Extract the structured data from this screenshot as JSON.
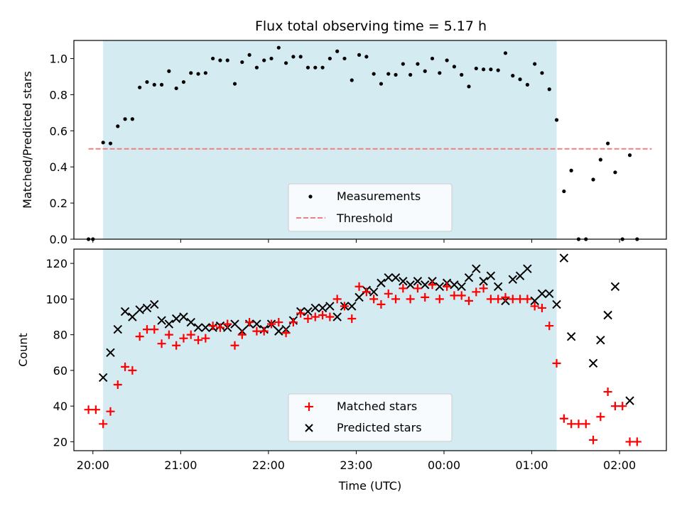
{
  "chart_data": [
    {
      "type": "scatter",
      "title": "Flux total observing time = 5.17 h",
      "ylabel": "Matched/Predicted stars",
      "xlabel": "",
      "xlim": [
        "19:47",
        "02:32"
      ],
      "ylim": [
        0,
        1.1
      ],
      "yticks": [
        "0.0",
        "0.2",
        "0.4",
        "0.6",
        "0.8",
        "1.0"
      ],
      "shaded_interval": [
        "20:07",
        "01:17"
      ],
      "legend": {
        "placement": "bottom-center",
        "entries": [
          "Measurements",
          "Threshold"
        ]
      },
      "threshold": {
        "y": 0.5,
        "x": [
          "19:57",
          "02:22"
        ],
        "color": "#f08080"
      },
      "series": [
        {
          "name": "Measurements",
          "color": "#000000",
          "marker": "dot",
          "points": [
            [
              "19:57",
              0.0
            ],
            [
              "20:00",
              0.0
            ],
            [
              "20:07",
              0.535
            ],
            [
              "20:12",
              0.53
            ],
            [
              "20:17",
              0.625
            ],
            [
              "20:22",
              0.665
            ],
            [
              "20:27",
              0.665
            ],
            [
              "20:32",
              0.84
            ],
            [
              "20:37",
              0.87
            ],
            [
              "20:42",
              0.855
            ],
            [
              "20:47",
              0.855
            ],
            [
              "20:52",
              0.93
            ],
            [
              "20:57",
              0.835
            ],
            [
              "21:02",
              0.87
            ],
            [
              "21:07",
              0.92
            ],
            [
              "21:12",
              0.915
            ],
            [
              "21:17",
              0.92
            ],
            [
              "21:22",
              1.0
            ],
            [
              "21:27",
              0.99
            ],
            [
              "21:32",
              0.99
            ],
            [
              "21:37",
              0.86
            ],
            [
              "21:42",
              0.98
            ],
            [
              "21:47",
              1.02
            ],
            [
              "21:52",
              0.95
            ],
            [
              "21:57",
              0.99
            ],
            [
              "22:02",
              1.0
            ],
            [
              "22:07",
              1.06
            ],
            [
              "22:12",
              0.975
            ],
            [
              "22:17",
              1.01
            ],
            [
              "22:22",
              1.01
            ],
            [
              "22:27",
              0.95
            ],
            [
              "22:32",
              0.95
            ],
            [
              "22:37",
              0.95
            ],
            [
              "22:42",
              1.0
            ],
            [
              "22:47",
              1.04
            ],
            [
              "22:52",
              1.0
            ],
            [
              "22:57",
              0.88
            ],
            [
              "23:02",
              1.02
            ],
            [
              "23:07",
              1.01
            ],
            [
              "23:12",
              0.915
            ],
            [
              "23:17",
              0.86
            ],
            [
              "23:22",
              0.915
            ],
            [
              "23:27",
              0.91
            ],
            [
              "23:32",
              0.97
            ],
            [
              "23:37",
              0.91
            ],
            [
              "23:42",
              0.97
            ],
            [
              "23:47",
              0.93
            ],
            [
              "23:52",
              1.0
            ],
            [
              "23:57",
              0.92
            ],
            [
              "00:02",
              0.99
            ],
            [
              "00:07",
              0.955
            ],
            [
              "00:12",
              0.91
            ],
            [
              "00:17",
              0.845
            ],
            [
              "00:22",
              0.945
            ],
            [
              "00:27",
              0.94
            ],
            [
              "00:32",
              0.94
            ],
            [
              "00:37",
              0.935
            ],
            [
              "00:42",
              1.03
            ],
            [
              "00:47",
              0.905
            ],
            [
              "00:52",
              0.885
            ],
            [
              "00:57",
              0.855
            ],
            [
              "01:02",
              0.97
            ],
            [
              "01:07",
              0.92
            ],
            [
              "01:12",
              0.83
            ],
            [
              "01:17",
              0.66
            ],
            [
              "01:22",
              0.265
            ],
            [
              "01:27",
              0.38
            ],
            [
              "01:32",
              0.0
            ],
            [
              "01:37",
              0.0
            ],
            [
              "01:42",
              0.33
            ],
            [
              "01:47",
              0.44
            ],
            [
              "01:52",
              0.53
            ],
            [
              "01:57",
              0.37
            ],
            [
              "02:02",
              0.0
            ],
            [
              "02:07",
              0.465
            ],
            [
              "02:12",
              0.0
            ]
          ]
        }
      ]
    },
    {
      "type": "scatter",
      "title": "",
      "ylabel": "Count",
      "xlabel": "Time (UTC)",
      "xlim": [
        "19:47",
        "02:32"
      ],
      "ylim": [
        15,
        128
      ],
      "yticks": [
        "20",
        "40",
        "60",
        "80",
        "100",
        "120"
      ],
      "xticks": [
        "20:00",
        "21:00",
        "22:00",
        "23:00",
        "00:00",
        "01:00",
        "02:00"
      ],
      "shaded_interval": [
        "20:07",
        "01:17"
      ],
      "legend": {
        "placement": "bottom-center",
        "entries": [
          "Matched stars",
          "Predicted stars"
        ]
      },
      "series": [
        {
          "name": "Matched stars",
          "color": "#ff0000",
          "marker": "plus",
          "points": [
            [
              "19:57",
              38
            ],
            [
              "20:02",
              38
            ],
            [
              "20:07",
              30
            ],
            [
              "20:12",
              37
            ],
            [
              "20:17",
              52
            ],
            [
              "20:22",
              62
            ],
            [
              "20:27",
              60
            ],
            [
              "20:32",
              79
            ],
            [
              "20:37",
              83
            ],
            [
              "20:42",
              83
            ],
            [
              "20:47",
              75
            ],
            [
              "20:52",
              80
            ],
            [
              "20:57",
              74
            ],
            [
              "21:02",
              78
            ],
            [
              "21:07",
              80
            ],
            [
              "21:12",
              77
            ],
            [
              "21:17",
              78
            ],
            [
              "21:22",
              85
            ],
            [
              "21:27",
              84
            ],
            [
              "21:32",
              86
            ],
            [
              "21:37",
              74
            ],
            [
              "21:42",
              80
            ],
            [
              "21:47",
              87
            ],
            [
              "21:52",
              82
            ],
            [
              "21:57",
              82
            ],
            [
              "22:02",
              86
            ],
            [
              "22:07",
              87
            ],
            [
              "22:12",
              81
            ],
            [
              "22:17",
              87
            ],
            [
              "22:22",
              92
            ],
            [
              "22:27",
              89
            ],
            [
              "22:32",
              90
            ],
            [
              "22:37",
              91
            ],
            [
              "22:42",
              90
            ],
            [
              "22:47",
              100
            ],
            [
              "22:52",
              96
            ],
            [
              "22:57",
              89
            ],
            [
              "23:02",
              107
            ],
            [
              "23:07",
              104
            ],
            [
              "23:12",
              100
            ],
            [
              "23:17",
              97
            ],
            [
              "23:22",
              103
            ],
            [
              "23:27",
              100
            ],
            [
              "23:32",
              106
            ],
            [
              "23:37",
              100
            ],
            [
              "23:42",
              106
            ],
            [
              "23:47",
              101
            ],
            [
              "23:52",
              108
            ],
            [
              "23:57",
              100
            ],
            [
              "00:02",
              107
            ],
            [
              "00:07",
              102
            ],
            [
              "00:12",
              102
            ],
            [
              "00:17",
              99
            ],
            [
              "00:22",
              104
            ],
            [
              "00:27",
              106
            ],
            [
              "00:32",
              100
            ],
            [
              "00:37",
              100
            ],
            [
              "00:42",
              101
            ],
            [
              "00:47",
              100
            ],
            [
              "00:52",
              100
            ],
            [
              "00:57",
              100
            ],
            [
              "01:02",
              96
            ],
            [
              "01:07",
              95
            ],
            [
              "01:12",
              85
            ],
            [
              "01:17",
              64
            ],
            [
              "01:22",
              33
            ],
            [
              "01:27",
              30
            ],
            [
              "01:32",
              30
            ],
            [
              "01:37",
              30
            ],
            [
              "01:42",
              21
            ],
            [
              "01:47",
              34
            ],
            [
              "01:52",
              48
            ],
            [
              "01:57",
              40
            ],
            [
              "02:02",
              40
            ],
            [
              "02:07",
              20
            ],
            [
              "02:12",
              20
            ]
          ]
        },
        {
          "name": "Predicted stars",
          "color": "#000000",
          "marker": "x",
          "points": [
            [
              "20:07",
              56
            ],
            [
              "20:12",
              70
            ],
            [
              "20:17",
              83
            ],
            [
              "20:22",
              93
            ],
            [
              "20:27",
              90
            ],
            [
              "20:32",
              94
            ],
            [
              "20:37",
              95
            ],
            [
              "20:42",
              97
            ],
            [
              "20:47",
              88
            ],
            [
              "20:52",
              86
            ],
            [
              "20:57",
              89
            ],
            [
              "21:02",
              90
            ],
            [
              "21:07",
              87
            ],
            [
              "21:12",
              84
            ],
            [
              "21:17",
              84
            ],
            [
              "21:22",
              84
            ],
            [
              "21:27",
              85
            ],
            [
              "21:32",
              84
            ],
            [
              "21:37",
              86
            ],
            [
              "21:42",
              82
            ],
            [
              "21:47",
              86
            ],
            [
              "21:52",
              86
            ],
            [
              "21:57",
              83
            ],
            [
              "22:02",
              86
            ],
            [
              "22:07",
              82
            ],
            [
              "22:12",
              83
            ],
            [
              "22:17",
              88
            ],
            [
              "22:22",
              93
            ],
            [
              "22:27",
              93
            ],
            [
              "22:32",
              95
            ],
            [
              "22:37",
              95
            ],
            [
              "22:42",
              96
            ],
            [
              "22:47",
              90
            ],
            [
              "22:52",
              96
            ],
            [
              "22:57",
              96
            ],
            [
              "23:02",
              101
            ],
            [
              "23:07",
              105
            ],
            [
              "23:12",
              104
            ],
            [
              "23:17",
              109
            ],
            [
              "23:22",
              112
            ],
            [
              "23:27",
              112
            ],
            [
              "23:32",
              110
            ],
            [
              "23:37",
              108
            ],
            [
              "23:42",
              110
            ],
            [
              "23:47",
              108
            ],
            [
              "23:52",
              110
            ],
            [
              "23:57",
              107
            ],
            [
              "00:02",
              109
            ],
            [
              "00:07",
              108
            ],
            [
              "00:12",
              107
            ],
            [
              "00:17",
              112
            ],
            [
              "00:22",
              117
            ],
            [
              "00:27",
              110
            ],
            [
              "00:32",
              113
            ],
            [
              "00:37",
              107
            ],
            [
              "00:42",
              99
            ],
            [
              "00:47",
              111
            ],
            [
              "00:52",
              113
            ],
            [
              "00:57",
              117
            ],
            [
              "01:02",
              99
            ],
            [
              "01:07",
              103
            ],
            [
              "01:12",
              103
            ],
            [
              "01:17",
              97
            ],
            [
              "01:22",
              123
            ],
            [
              "01:27",
              79
            ],
            [
              "01:42",
              64
            ],
            [
              "01:47",
              77
            ],
            [
              "01:52",
              91
            ],
            [
              "01:57",
              107
            ],
            [
              "02:07",
              43
            ]
          ]
        }
      ]
    }
  ],
  "colors": {
    "shade": "#add8e6",
    "matched": "#ff0000",
    "predicted": "#000000",
    "threshold": "#f08080"
  }
}
